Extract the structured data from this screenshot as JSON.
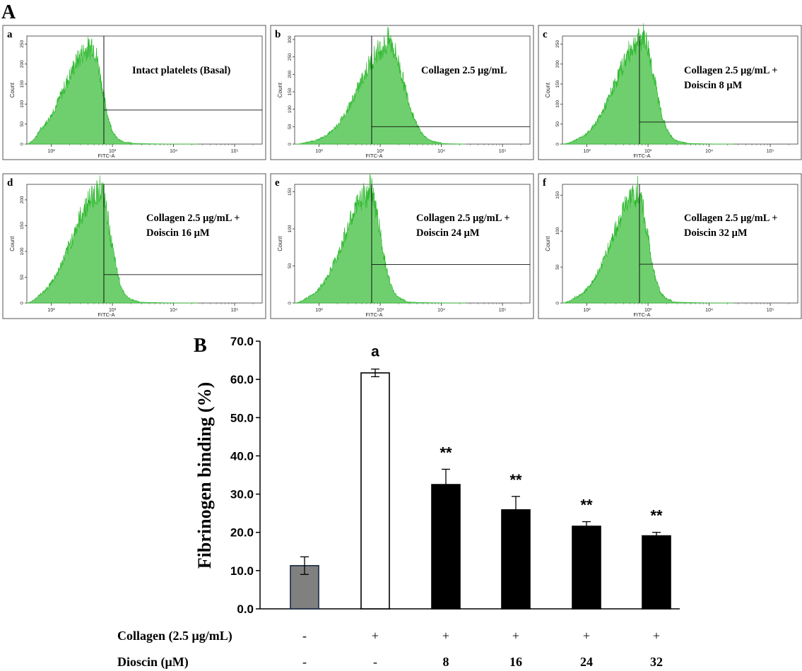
{
  "panel_a": {
    "label": "A",
    "x_axis_label": "FITC-A",
    "y_axis_label": "Count",
    "x_tick_labels": [
      "10²",
      "10³",
      "10⁴",
      "10⁵"
    ],
    "histogram_color": "#6fcf6f",
    "histogram_edge_color": "#2eb82e",
    "panels": [
      {
        "letter": "a",
        "caption": [
          "Intact platelets (Basal)"
        ],
        "y_ticks": [
          "0",
          "50",
          "100",
          "150",
          "200",
          "250"
        ],
        "y_max": 270
      },
      {
        "letter": "b",
        "caption": [
          "Collagen 2.5 μg/mL"
        ],
        "y_ticks": [
          "0",
          "50",
          "100",
          "150",
          "200",
          "250",
          "300"
        ],
        "y_max": 310
      },
      {
        "letter": "c",
        "caption": [
          "Collagen 2.5 μg/mL +",
          "Doiscin 8 μM"
        ],
        "y_ticks": [
          "0",
          "50",
          "100",
          "150",
          "200",
          "250"
        ],
        "y_max": 270
      },
      {
        "letter": "d",
        "caption": [
          "Collagen 2.5 μg/mL +",
          "Doiscin 16 μM"
        ],
        "y_ticks": [
          "0",
          "50",
          "100",
          "150",
          "200"
        ],
        "y_max": 230
      },
      {
        "letter": "e",
        "caption": [
          "Collagen 2.5 μg/mL +",
          "Doiscin 24 μM"
        ],
        "y_ticks": [
          "0",
          "50",
          "100",
          "150"
        ],
        "y_max": 160
      },
      {
        "letter": "f",
        "caption": [
          "Collagen 2.5 μg/mL +",
          "Doiscin 32 μM"
        ],
        "y_ticks": [
          "0",
          "50",
          "100",
          "150"
        ],
        "y_max": 165
      }
    ]
  },
  "chart_data": {
    "label": "B",
    "type": "bar",
    "title": "",
    "xlabel": "",
    "ylabel": "Fibrinogen binding (%)",
    "ylim": [
      0,
      70
    ],
    "y_ticks": [
      "0.0",
      "10.0",
      "20.0",
      "30.0",
      "40.0",
      "50.0",
      "60.0",
      "70.0"
    ],
    "values": [
      11.3,
      61.7,
      32.5,
      25.9,
      21.6,
      19.1
    ],
    "errors": [
      2.3,
      1.0,
      4.0,
      3.5,
      1.2,
      0.9
    ],
    "annotations": [
      "",
      "a",
      "**",
      "**",
      "**",
      "**"
    ],
    "bar_colors": [
      "#808080",
      "#ffffff",
      "#000000",
      "#000000",
      "#000000",
      "#000000"
    ],
    "conditions": [
      {
        "label": "Collagen  (2.5 μg/mL)",
        "values": [
          "-",
          "+",
          "+",
          "+",
          "+",
          "+"
        ]
      },
      {
        "label": "Dioscin (μM)",
        "values": [
          "-",
          "-",
          "8",
          "16",
          "24",
          "32"
        ]
      }
    ]
  }
}
